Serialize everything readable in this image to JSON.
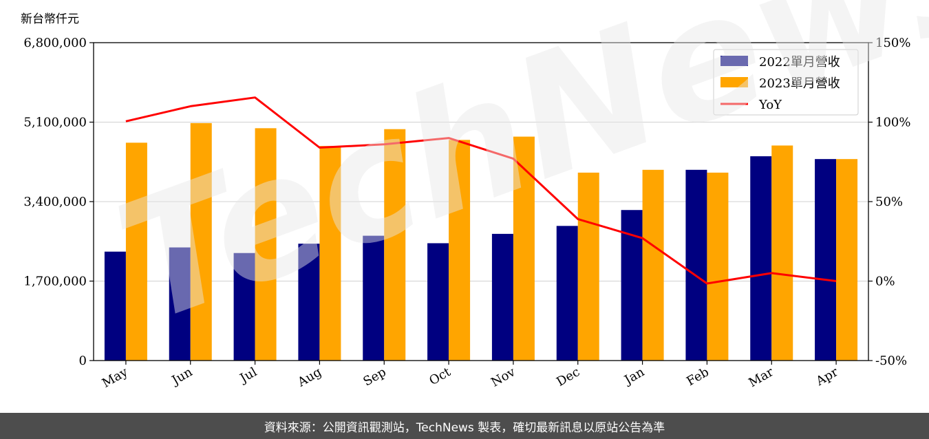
{
  "chart_data": {
    "type": "bar",
    "unit_label": "新台幣仟元",
    "categories": [
      "May",
      "Jun",
      "Jul",
      "Aug",
      "Sep",
      "Oct",
      "Nov",
      "Dec",
      "Jan",
      "Feb",
      "Mar",
      "Apr"
    ],
    "series": [
      {
        "name": "2022單月營收",
        "type": "bar",
        "axis": "left",
        "color": "#000080",
        "values": [
          2330000,
          2420000,
          2300000,
          2500000,
          2670000,
          2510000,
          2710000,
          2880000,
          3220000,
          4080000,
          4370000,
          4310000
        ]
      },
      {
        "name": "2023單月營收",
        "type": "bar",
        "axis": "left",
        "color": "#ffa500",
        "values": [
          4660000,
          5080000,
          4970000,
          4590000,
          4950000,
          4720000,
          4790000,
          4020000,
          4080000,
          4020000,
          4600000,
          4310000
        ]
      },
      {
        "name": "YoY",
        "type": "line",
        "axis": "right",
        "color": "#ff0000",
        "values": [
          100.5,
          110,
          115.5,
          84,
          86,
          90,
          77,
          39,
          27,
          -1.5,
          5,
          0
        ]
      }
    ],
    "y_left": {
      "ylim": [
        0,
        6800000
      ],
      "ticks": [
        0,
        1700000,
        3400000,
        5100000,
        6800000
      ],
      "tick_labels": [
        "0",
        "1,700,000",
        "3,400,000",
        "5,100,000",
        "6,800,000"
      ]
    },
    "y_right": {
      "ylim": [
        -50,
        150
      ],
      "ticks": [
        -50,
        0,
        50,
        100,
        150
      ],
      "tick_labels": [
        "-50%",
        "0%",
        "50%",
        "100%",
        "150%"
      ]
    },
    "grid": "horizontal",
    "legend_position": "top-right"
  },
  "footer": {
    "source_text": "資料來源：公開資訊觀測站，TechNews 製表，確切最新訊息以原站公告為準"
  },
  "watermark": {
    "text": "TechNews"
  }
}
